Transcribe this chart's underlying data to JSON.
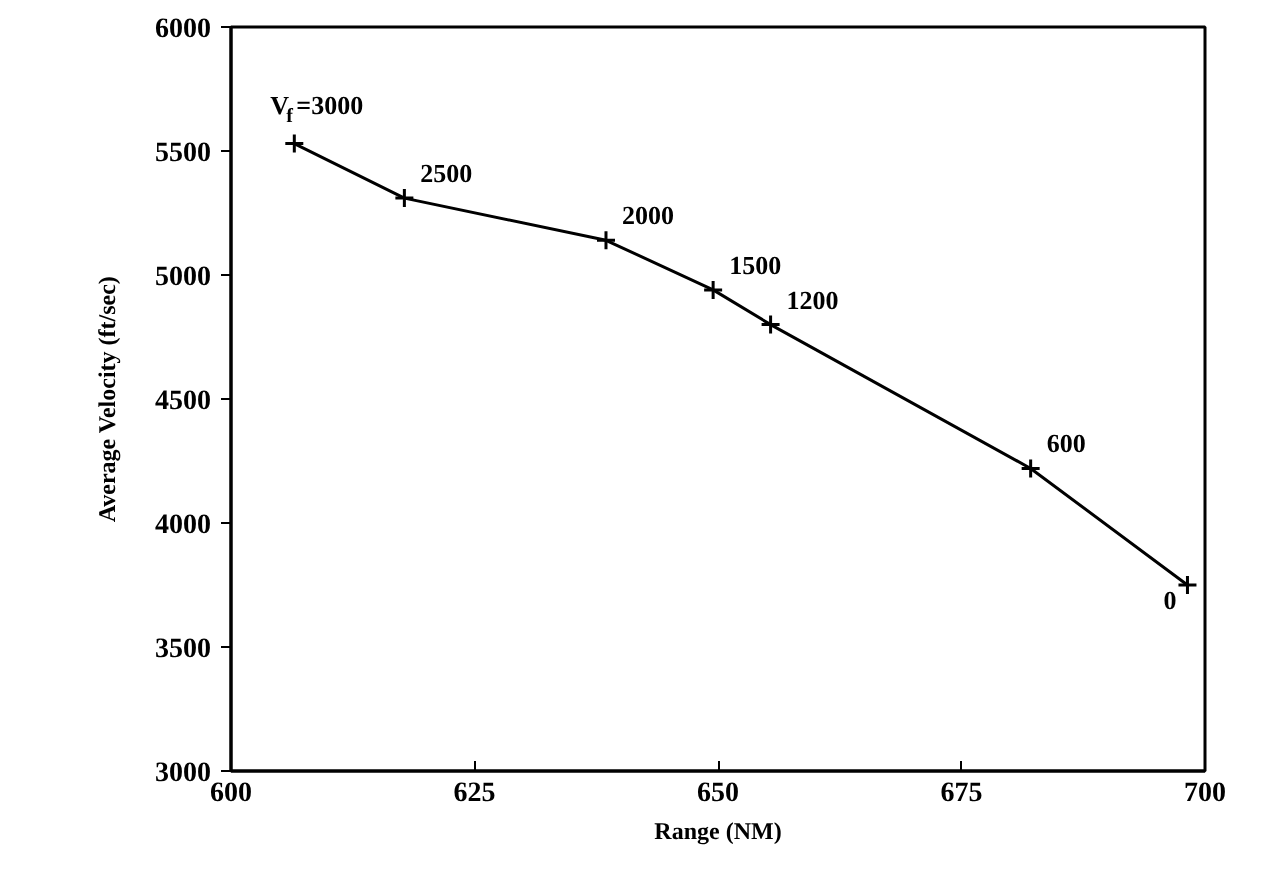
{
  "chart_data": {
    "type": "line",
    "xlabel": "Range (NM)",
    "ylabel": "Average Velocity (ft/sec)",
    "x": [
      606.5,
      617.8,
      638.5,
      649.5,
      655.4,
      682.1,
      698.2
    ],
    "series": [
      {
        "color": "#000000",
        "values": [
          5530,
          5310,
          5140,
          4940,
          4800,
          4220,
          3750
        ]
      }
    ],
    "xlim": [
      600,
      700
    ],
    "ylim": [
      3000,
      6000
    ],
    "xticks": [
      600,
      625,
      650,
      675,
      700
    ],
    "yticks": [
      3000,
      3500,
      4000,
      4500,
      5000,
      5500,
      6000
    ],
    "grid": false,
    "marker": "cross",
    "line_style": "solid",
    "annotations": [
      {
        "text": "V$_{f}$=3000",
        "x": 606.5,
        "y": 5530
      },
      {
        "text": "2500",
        "x": 617.8,
        "y": 5310
      },
      {
        "text": "2000",
        "x": 638.5,
        "y": 5140
      },
      {
        "text": "1500",
        "x": 649.5,
        "y": 4940
      },
      {
        "text": "1200",
        "x": 655.4,
        "y": 4800
      },
      {
        "text": "600",
        "x": 682.1,
        "y": 4220
      },
      {
        "text": "0",
        "x": 698.2,
        "y": 3750
      }
    ]
  }
}
